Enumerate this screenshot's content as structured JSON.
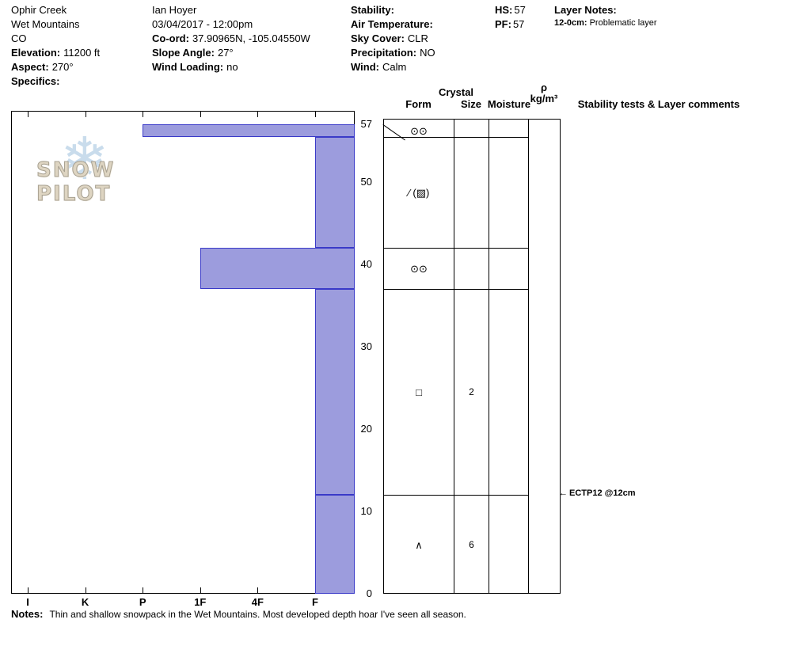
{
  "meta": {
    "location": {
      "name": "Ophir Creek",
      "range": "Wet Mountains",
      "state": "CO",
      "elevation_label": "Elevation:",
      "elevation": "11200 ft",
      "aspect_label": "Aspect:",
      "aspect": "270°",
      "specifics_label": "Specifics:"
    },
    "observer": {
      "name": "Ian Hoyer",
      "datetime": "03/04/2017 - 12:00pm",
      "coord_label": "Co-ord:",
      "coord": "37.90965N, -105.04550W",
      "slope_label": "Slope Angle:",
      "slope": "27°",
      "wind_loading_label": "Wind Loading:",
      "wind_loading": "no"
    },
    "conditions": {
      "stability_label": "Stability:",
      "air_temp_label": "Air Temperature:",
      "sky_label": "Sky Cover:",
      "sky": "CLR",
      "precip_label": "Precipitation:",
      "precip": "NO",
      "wind_label": "Wind:",
      "wind": "Calm"
    },
    "totals": {
      "hs_label": "HS:",
      "hs": "57",
      "pf_label": "PF:",
      "pf": "57"
    },
    "layer_notes": {
      "title": "Layer Notes:",
      "items": [
        {
          "range": "12-0cm:",
          "text": "Problematic layer"
        }
      ]
    }
  },
  "logo": {
    "text": "SNOW PILOT",
    "snowflake_icon": "❄"
  },
  "grid_headers": {
    "crystal": "Crystal",
    "form": "Form",
    "size": "Size",
    "moisture": "Moisture",
    "rho": "ρ",
    "rho_unit": "kg/m³",
    "comments": "Stability tests & Layer comments"
  },
  "notes": {
    "label": "Notes:",
    "text": "Thin and shallow snowpack in the Wet Mountains. Most developed depth hoar I've seen all season."
  },
  "chart_data": {
    "type": "bar",
    "subtype": "snow-hardness-profile",
    "title": "",
    "hardness_axis": {
      "labels": [
        "I",
        "K",
        "P",
        "1F",
        "4F",
        "F"
      ]
    },
    "depth_axis": {
      "unit": "cm",
      "max": 57,
      "ticks": [
        0,
        10,
        20,
        30,
        40,
        50,
        57
      ]
    },
    "layers": [
      {
        "top_cm": 57,
        "bottom_cm": 55.5,
        "hardness": "P",
        "form": "⊙⊙",
        "size": "",
        "moisture": "",
        "density": ""
      },
      {
        "top_cm": 55.5,
        "bottom_cm": 42,
        "hardness": "F",
        "form": "∕ (▨)",
        "size": "",
        "moisture": "",
        "density": ""
      },
      {
        "top_cm": 42,
        "bottom_cm": 37,
        "hardness": "1F",
        "form": "⊙⊙",
        "size": "",
        "moisture": "",
        "density": ""
      },
      {
        "top_cm": 37,
        "bottom_cm": 12,
        "hardness": "F",
        "form": "□",
        "size": "2",
        "moisture": "",
        "density": ""
      },
      {
        "top_cm": 12,
        "bottom_cm": 0,
        "hardness": "F",
        "form": "∧",
        "size": "6",
        "moisture": "",
        "density": ""
      }
    ],
    "stability_tests": [
      {
        "label": "ECTP12 @12cm",
        "depth_cm": 12,
        "arrow_icon": "←"
      }
    ],
    "bar_fill": "#9c9cdd",
    "bar_border": "#3a3ac8",
    "grid_color": "#000000"
  }
}
